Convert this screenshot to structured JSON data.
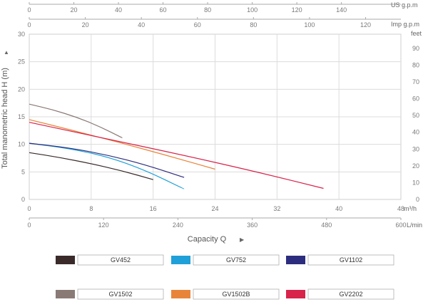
{
  "chart_data": {
    "type": "line",
    "title": "",
    "xlabel": "Capacity  Q",
    "ylabel": "Total  manometric  head  H  (m)",
    "xlim": [
      0,
      48
    ],
    "ylim": [
      0,
      30
    ],
    "grid": true,
    "legend_position": "bottom",
    "x_ticks": [
      0,
      8,
      16,
      24,
      32,
      40,
      48
    ],
    "y_ticks": [
      0,
      5,
      10,
      15,
      20,
      25,
      30
    ],
    "x_unit": "m³/h",
    "secondary_axes": {
      "us_gpm": {
        "unit": "US g.p.m",
        "ticks": [
          0,
          20,
          40,
          60,
          80,
          100,
          120,
          140
        ]
      },
      "imp_gpm": {
        "unit": "Imp g.p.m",
        "ticks": [
          0,
          20,
          40,
          60,
          80,
          100,
          120
        ]
      },
      "lmin": {
        "unit": "L/min",
        "ticks": [
          0,
          120,
          240,
          360,
          480,
          600
        ]
      },
      "feet": {
        "unit": "feet",
        "ticks": [
          0,
          10,
          20,
          30,
          40,
          50,
          60,
          70,
          80,
          90
        ]
      }
    },
    "series": [
      {
        "name": "GV452",
        "color": "#3a2a2a",
        "x": [
          0,
          4,
          8,
          12,
          16
        ],
        "y": [
          8.5,
          7.6,
          6.5,
          5.2,
          3.6
        ]
      },
      {
        "name": "GV752",
        "color": "#1fa0d8",
        "x": [
          0,
          5,
          10,
          15,
          20
        ],
        "y": [
          10.2,
          9.3,
          7.8,
          5.3,
          1.9
        ]
      },
      {
        "name": "GV1102",
        "color": "#2c2d7e",
        "x": [
          0,
          5,
          10,
          15,
          20
        ],
        "y": [
          10.2,
          9.4,
          8.1,
          6.3,
          4.0
        ]
      },
      {
        "name": "GV1502",
        "color": "#8a7a76",
        "x": [
          0,
          3,
          6,
          9,
          12
        ],
        "y": [
          17.3,
          16.3,
          15.0,
          13.3,
          11.2
        ]
      },
      {
        "name": "GV1502B",
        "color": "#e8843a",
        "x": [
          0,
          6,
          12,
          18,
          24
        ],
        "y": [
          14.5,
          12.4,
          10.2,
          7.9,
          5.5
        ]
      },
      {
        "name": "GV2202",
        "color": "#d8234a",
        "x": [
          0,
          10,
          20,
          30,
          38
        ],
        "y": [
          14.0,
          11.0,
          8.0,
          4.8,
          2.0
        ]
      }
    ]
  }
}
